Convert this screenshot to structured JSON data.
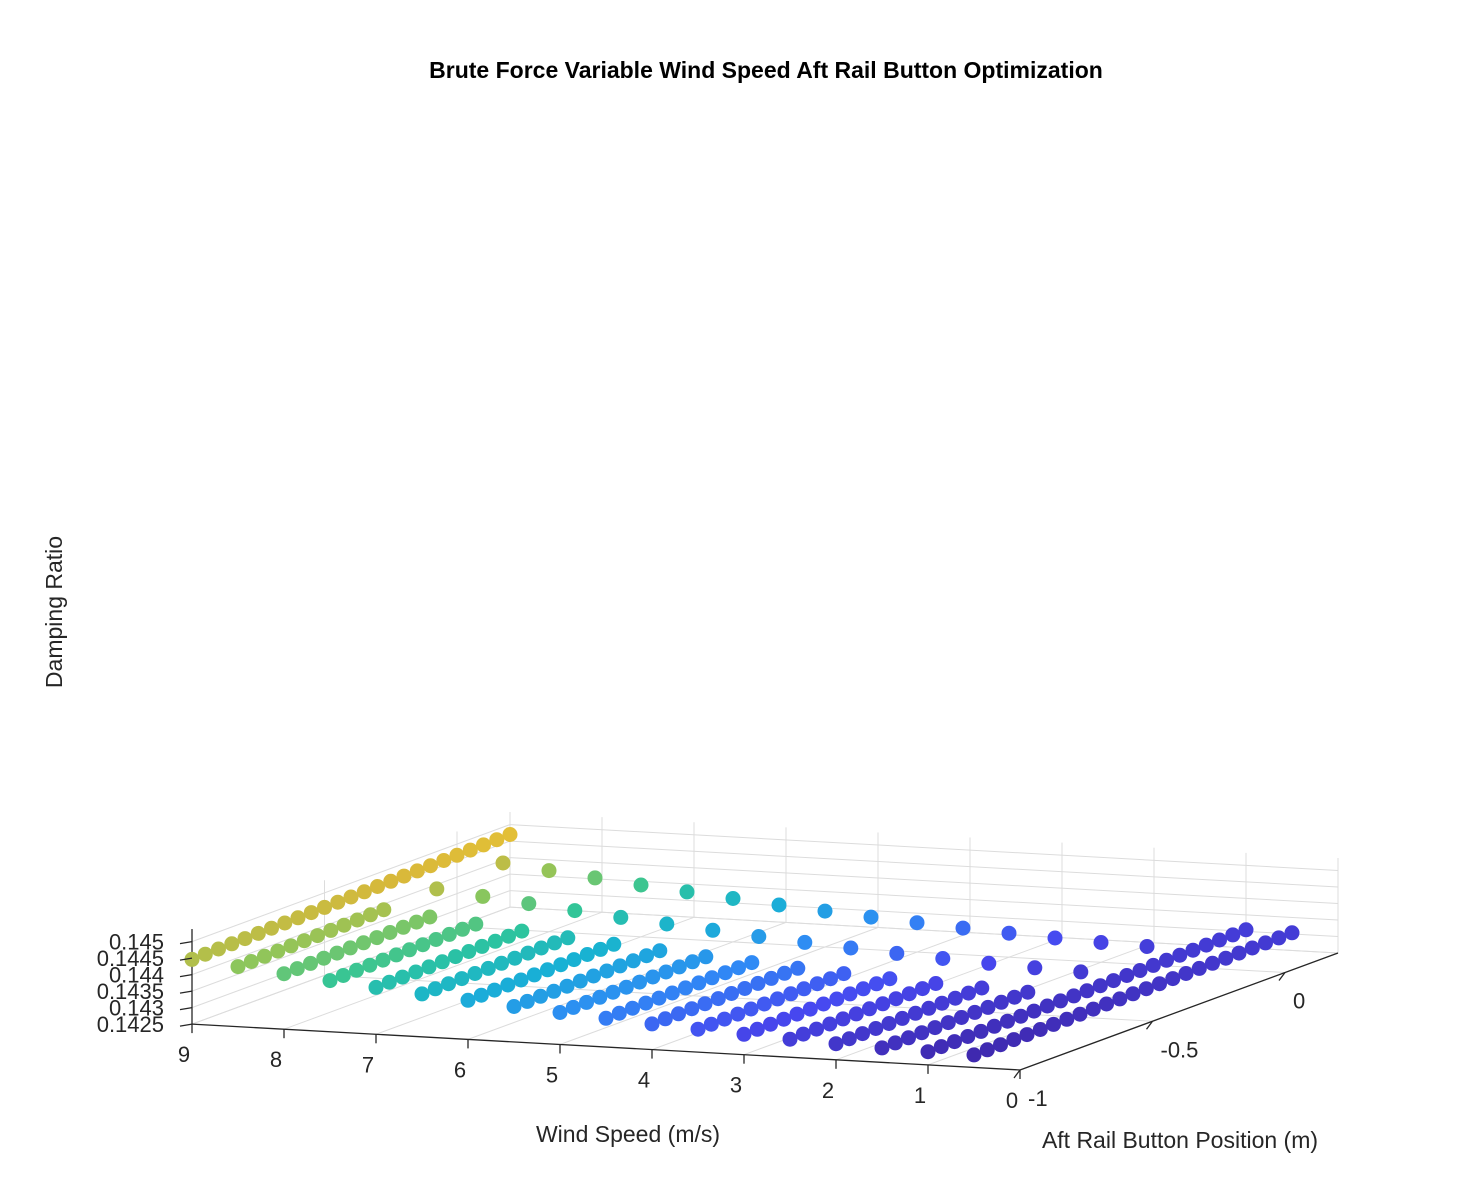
{
  "chart_data": {
    "type": "scatter",
    "title": "Brute Force Variable Wind Speed Aft Rail Button Optimization",
    "xlabel": "Wind Speed (m/s)",
    "ylabel": "Aft Rail Button Position (m)",
    "zlabel": "Damping Ratio",
    "xlim": [
      0,
      9
    ],
    "ylim": [
      -1,
      0.2
    ],
    "zlim": [
      0.1425,
      0.1453
    ],
    "x_ticks": [
      "9",
      "8",
      "7",
      "6",
      "5",
      "4",
      "3",
      "2",
      "1",
      "0"
    ],
    "y_ticks": [
      "-1",
      "-0.5",
      "0"
    ],
    "z_ticks": [
      "0.1425",
      "0.143",
      "0.1435",
      "0.144",
      "0.1445",
      "0.145"
    ],
    "grid": true,
    "colormap": "parula",
    "colormap_stops": [
      "#3e26a8",
      "#4748f0",
      "#2f8bf5",
      "#18b1d4",
      "#2fc59a",
      "#8cc65c",
      "#d8b83a",
      "#fcd02e",
      "#f9fb0e"
    ],
    "marker": "filled circle",
    "series": [
      {
        "wind_speed": [
          0.5,
          1.0,
          1.5,
          2.0,
          2.5,
          3.0,
          3.5,
          4.0,
          4.5,
          5.0,
          5.5,
          6.0,
          6.5,
          7.0,
          7.5,
          8.0,
          8.5,
          9.0
        ],
        "aft_rail_button_position": [
          -1.0,
          -0.95,
          -0.9,
          -0.85,
          -0.8,
          -0.75,
          -0.7,
          -0.65,
          -0.6,
          -0.55,
          -0.5,
          -0.45,
          -0.4,
          -0.35,
          -0.3,
          -0.25,
          -0.2,
          -0.15,
          -0.1,
          -0.05,
          0.0,
          0.05,
          0.1,
          0.15,
          0.2
        ],
        "damping_ratio_approx": {
          "low_wind_front_row": 0.1429,
          "high_wind_front_row": 0.14446,
          "max": 0.1452,
          "min": 0.14285
        }
      }
    ]
  }
}
